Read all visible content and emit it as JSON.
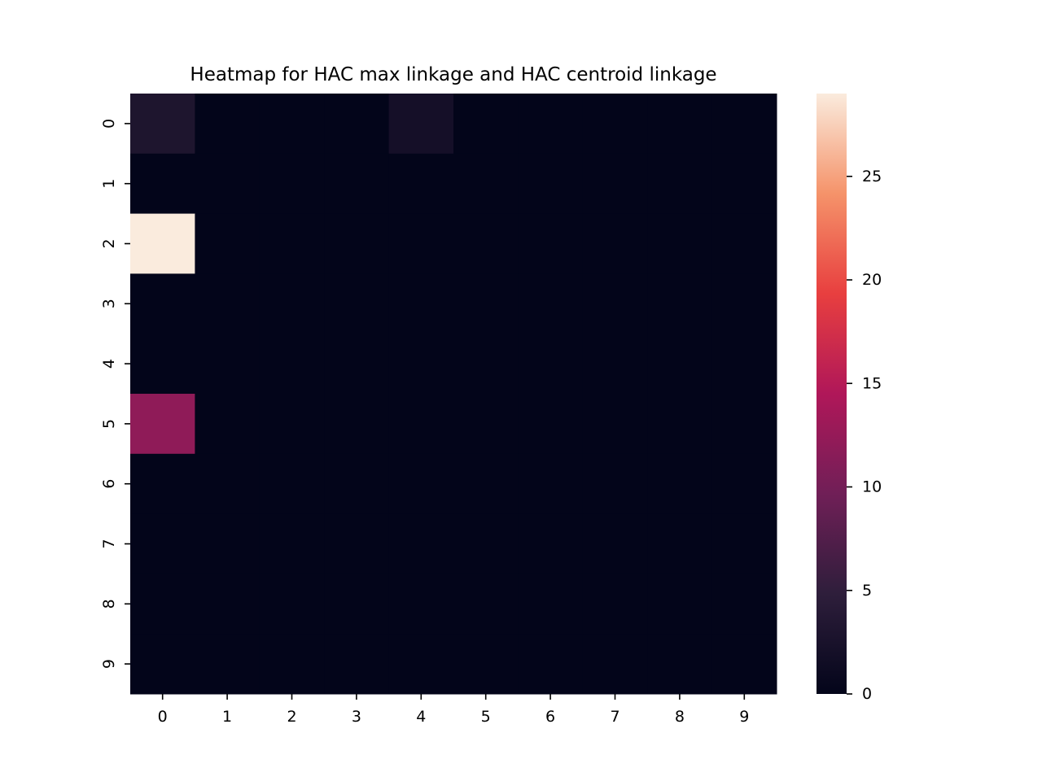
{
  "chart_data": {
    "type": "heatmap",
    "title": "Heatmap for HAC max linkage and HAC centroid linkage",
    "x_categories": [
      "0",
      "1",
      "2",
      "3",
      "4",
      "5",
      "6",
      "7",
      "8",
      "9"
    ],
    "y_categories": [
      "0",
      "1",
      "2",
      "3",
      "4",
      "5",
      "6",
      "7",
      "8",
      "9"
    ],
    "values": [
      [
        3,
        0,
        0,
        0,
        2,
        0,
        0,
        0,
        0,
        0
      ],
      [
        0,
        0,
        0,
        0,
        0,
        0,
        0,
        0,
        0,
        0
      ],
      [
        29,
        0,
        0,
        0,
        0,
        0,
        0,
        0,
        0,
        0
      ],
      [
        0,
        0,
        0,
        0,
        0,
        0,
        0,
        0,
        0,
        0
      ],
      [
        0,
        0,
        0,
        0,
        0,
        0,
        0,
        0,
        0,
        0
      ],
      [
        12,
        0,
        0,
        0,
        0,
        0,
        0,
        0,
        0,
        0
      ],
      [
        0,
        0,
        0,
        0,
        0,
        0,
        0,
        0,
        0,
        0
      ],
      [
        0,
        0,
        0,
        0,
        0,
        0,
        0,
        0,
        0,
        0
      ],
      [
        0,
        0,
        0,
        0,
        0,
        0,
        0,
        0,
        0,
        0
      ],
      [
        0,
        0,
        0,
        0,
        0,
        0,
        0,
        0,
        0,
        0
      ]
    ],
    "colorbar": {
      "min": 0,
      "max": 29,
      "ticks": [
        0,
        5,
        10,
        15,
        20,
        25
      ],
      "tick_labels": [
        "0",
        "5",
        "10",
        "15",
        "20",
        "25"
      ],
      "colormap": "rocket",
      "colormap_stops": [
        "#03051a",
        "#2e1e3b",
        "#701f57",
        "#b01759",
        "#e83f3f",
        "#f5936a",
        "#faebdd"
      ]
    }
  }
}
